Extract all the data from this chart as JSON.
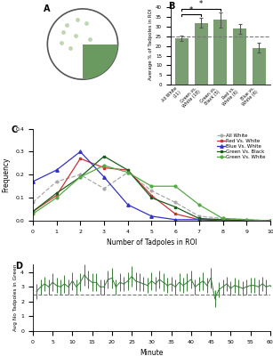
{
  "panel_A": {
    "circle_edge": "#555555",
    "green_color": "#6a9a5f",
    "dot_positions": [
      [
        -0.45,
        0.55
      ],
      [
        -0.2,
        0.25
      ],
      [
        -0.6,
        0.05
      ],
      [
        -0.15,
        0.7
      ],
      [
        -0.55,
        0.35
      ],
      [
        0.1,
        0.6
      ],
      [
        -0.35,
        -0.1
      ],
      [
        0.2,
        0.15
      ]
    ],
    "dot_color": "#c0d8b0"
  },
  "panel_B": {
    "categories": [
      "All White\n(11)",
      "Green vs.\nWhite (18)",
      "Green vs.\nBlack (5)",
      "Red vs.\nWhite (6)",
      "Blue vs.\nWhite (6)"
    ],
    "values": [
      24.0,
      32.0,
      33.5,
      29.0,
      19.0
    ],
    "errors": [
      1.5,
      2.5,
      4.0,
      2.5,
      2.5
    ],
    "bar_color": "#7a9e72",
    "dashed_line_y": 25.0,
    "ylabel": "Average % of Tadpoles in ROI",
    "ylim": [
      0,
      42
    ],
    "yticks": [
      0,
      5,
      10,
      15,
      20,
      25,
      30,
      35,
      40
    ],
    "sig_y1": 35.5,
    "sig_y2": 38.5
  },
  "panel_C": {
    "x": [
      0,
      1,
      2,
      3,
      4,
      5,
      6,
      7,
      8,
      9,
      10
    ],
    "all_white": [
      0.08,
      0.17,
      0.2,
      0.14,
      0.21,
      0.13,
      0.08,
      0.02,
      0.01,
      0.005,
      0.0
    ],
    "red_vs_white": [
      0.04,
      0.11,
      0.27,
      0.23,
      0.22,
      0.11,
      0.03,
      0.005,
      0.005,
      0.0,
      0.0
    ],
    "blue_vs_white": [
      0.17,
      0.22,
      0.3,
      0.19,
      0.07,
      0.02,
      0.005,
      0.005,
      0.0,
      0.0,
      0.0
    ],
    "green_vs_black": [
      0.04,
      0.12,
      0.19,
      0.28,
      0.22,
      0.1,
      0.06,
      0.01,
      0.005,
      0.0,
      0.0
    ],
    "green_vs_white": [
      0.03,
      0.1,
      0.19,
      0.24,
      0.21,
      0.15,
      0.15,
      0.07,
      0.01,
      0.005,
      0.0
    ],
    "color_all_white": "#aaaaaa",
    "color_red": "#cc3333",
    "color_blue": "#3333cc",
    "color_gvb": "#1a5c1a",
    "color_gvw": "#55aa44",
    "xlabel": "Number of Tadpoles in ROI",
    "ylabel": "Frequency",
    "ylim": [
      0.0,
      0.4
    ],
    "yticks": [
      0.0,
      0.1,
      0.2,
      0.3,
      0.4
    ]
  },
  "panel_D": {
    "minutes": [
      1,
      2,
      3,
      4,
      5,
      6,
      7,
      8,
      9,
      10,
      11,
      12,
      13,
      14,
      15,
      16,
      17,
      18,
      19,
      20,
      21,
      22,
      23,
      24,
      25,
      26,
      27,
      28,
      29,
      30,
      31,
      32,
      33,
      34,
      35,
      36,
      37,
      38,
      39,
      40,
      41,
      42,
      43,
      44,
      45,
      46,
      47,
      48,
      49,
      50,
      51,
      52,
      53,
      54,
      55,
      56,
      57,
      58,
      59,
      60
    ],
    "values": [
      2.7,
      3.0,
      3.2,
      3.0,
      3.3,
      3.1,
      3.0,
      3.2,
      3.0,
      3.4,
      3.0,
      3.3,
      3.8,
      3.5,
      3.3,
      3.3,
      3.0,
      3.0,
      3.5,
      3.6,
      3.0,
      3.3,
      3.2,
      3.4,
      3.7,
      3.4,
      3.3,
      3.2,
      3.1,
      3.4,
      3.2,
      3.5,
      3.3,
      3.1,
      3.2,
      3.0,
      3.3,
      3.1,
      3.3,
      3.5,
      3.0,
      3.2,
      3.4,
      3.1,
      3.6,
      2.2,
      2.8,
      3.0,
      3.2,
      2.9,
      3.1,
      3.0,
      2.9,
      3.0,
      3.1,
      3.1,
      3.0,
      3.2,
      3.0,
      3.1
    ],
    "errors": [
      0.5,
      0.5,
      0.5,
      0.5,
      0.6,
      0.5,
      0.5,
      0.6,
      0.5,
      0.6,
      0.5,
      0.6,
      0.7,
      0.6,
      0.6,
      0.6,
      0.5,
      0.5,
      0.6,
      0.7,
      0.5,
      0.6,
      0.5,
      0.6,
      0.7,
      0.6,
      0.6,
      0.5,
      0.5,
      0.6,
      0.5,
      0.6,
      0.6,
      0.5,
      0.5,
      0.5,
      0.6,
      0.5,
      0.6,
      0.6,
      0.5,
      0.5,
      0.6,
      0.5,
      0.7,
      0.6,
      0.5,
      0.5,
      0.5,
      0.5,
      0.5,
      0.5,
      0.5,
      0.5,
      0.5,
      0.5,
      0.5,
      0.5,
      0.5,
      0.5
    ],
    "line_color": "#3a7a3a",
    "dashed_line_y": 2.5,
    "ylabel": "Avg No Tadpoles in Green",
    "xlabel": "Minute",
    "ylim": [
      0.0,
      4.5
    ],
    "yticks": [
      0.0,
      1.0,
      2.0,
      3.0,
      4.0
    ],
    "xlim": [
      0,
      60
    ],
    "xticks": [
      0,
      5,
      10,
      15,
      20,
      25,
      30,
      35,
      40,
      45,
      50,
      55,
      60
    ]
  }
}
